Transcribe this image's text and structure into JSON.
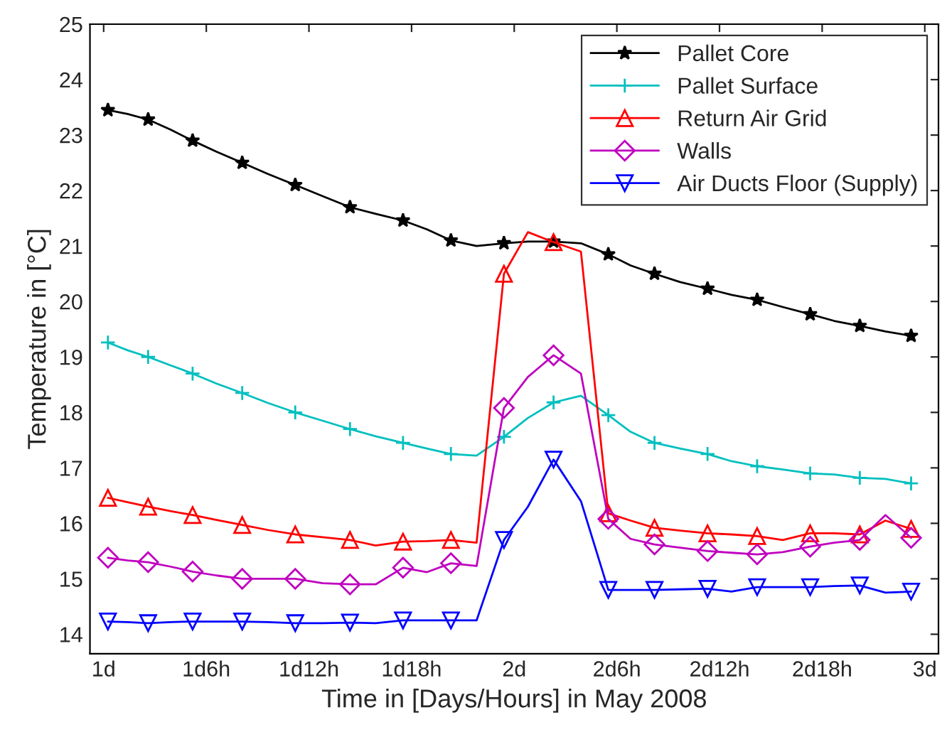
{
  "chart_data": {
    "type": "line",
    "xlabel": "Time in [Days/Hours] in May 2008",
    "ylabel": "Temperature in [°C]",
    "x": [
      "2008-05-01T00:15",
      "2008-05-01T01:24",
      "2008-05-01T02:36",
      "2008-05-01T03:54",
      "2008-05-01T05:12",
      "2008-05-01T06:36",
      "2008-05-01T08:06",
      "2008-05-01T09:36",
      "2008-05-01T11:12",
      "2008-05-01T12:48",
      "2008-05-01T14:24",
      "2008-05-01T15:54",
      "2008-05-01T17:30",
      "2008-05-01T18:54",
      "2008-05-01T20:18",
      "2008-05-01T21:48",
      "2008-05-01T23:24",
      "2008-05-02T00:48",
      "2008-05-02T02:18",
      "2008-05-02T03:54",
      "2008-05-02T05:30",
      "2008-05-02T06:48",
      "2008-05-02T08:12",
      "2008-05-02T09:42",
      "2008-05-02T11:18",
      "2008-05-02T12:42",
      "2008-05-02T14:12",
      "2008-05-02T15:42",
      "2008-05-02T17:18",
      "2008-05-02T18:42",
      "2008-05-02T20:12",
      "2008-05-02T21:42",
      "2008-05-02T23:12"
    ],
    "series": [
      {
        "name": "Pallet Core",
        "color": "#000000",
        "marker": "star",
        "values": [
          23.45,
          23.38,
          23.28,
          23.1,
          22.9,
          22.7,
          22.5,
          22.3,
          22.1,
          21.9,
          21.7,
          21.58,
          21.46,
          21.3,
          21.1,
          21.0,
          21.05,
          21.08,
          21.08,
          21.05,
          20.85,
          20.65,
          20.5,
          20.35,
          20.23,
          20.12,
          20.03,
          19.9,
          19.77,
          19.65,
          19.56,
          19.46,
          19.38
        ]
      },
      {
        "name": "Pallet Surface",
        "color": "#00bfbf",
        "marker": "cross",
        "values": [
          19.26,
          19.12,
          19.0,
          18.85,
          18.7,
          18.52,
          18.35,
          18.17,
          18.0,
          17.85,
          17.7,
          17.57,
          17.45,
          17.35,
          17.25,
          17.22,
          17.56,
          17.9,
          18.18,
          18.3,
          17.95,
          17.65,
          17.45,
          17.35,
          17.25,
          17.12,
          17.03,
          16.97,
          16.9,
          16.88,
          16.82,
          16.8,
          16.72
        ]
      },
      {
        "name": "Return Air Grid",
        "color": "#ff0000",
        "marker": "triangle",
        "values": [
          16.46,
          16.38,
          16.3,
          16.22,
          16.15,
          16.06,
          15.97,
          15.88,
          15.8,
          15.75,
          15.7,
          15.6,
          15.67,
          15.68,
          15.7,
          15.65,
          20.5,
          21.25,
          21.07,
          20.9,
          16.18,
          16.05,
          15.92,
          15.87,
          15.82,
          15.8,
          15.77,
          15.7,
          15.82,
          15.82,
          15.8,
          16.05,
          15.9
        ]
      },
      {
        "name": "Walls",
        "color": "#bf00bf",
        "marker": "diamond",
        "values": [
          15.38,
          15.33,
          15.3,
          15.22,
          15.13,
          15.06,
          15.0,
          15.0,
          15.0,
          14.92,
          14.9,
          14.9,
          15.2,
          15.12,
          15.28,
          15.23,
          18.08,
          18.64,
          19.03,
          18.7,
          16.08,
          15.72,
          15.62,
          15.56,
          15.5,
          15.47,
          15.44,
          15.48,
          15.58,
          15.65,
          15.7,
          16.15,
          15.74
        ]
      },
      {
        "name": "Air Ducts Floor (Supply)",
        "color": "#0000ff",
        "marker": "triangle_down",
        "values": [
          14.23,
          14.22,
          14.2,
          14.22,
          14.23,
          14.23,
          14.23,
          14.22,
          14.2,
          14.2,
          14.21,
          14.2,
          14.25,
          14.25,
          14.25,
          14.25,
          15.7,
          16.3,
          17.15,
          16.4,
          14.8,
          14.8,
          14.8,
          14.81,
          14.82,
          14.77,
          14.85,
          14.85,
          14.85,
          14.87,
          14.88,
          14.75,
          14.77
        ]
      }
    ],
    "xlim": [
      "2008-04-30T23:12",
      "2008-05-03T00:48"
    ],
    "ylim": [
      13.65,
      25
    ],
    "xticks": [
      {
        "value": "2008-05-01T00:00",
        "label": "1d"
      },
      {
        "value": "2008-05-01T06:00",
        "label": "1d6h"
      },
      {
        "value": "2008-05-01T12:00",
        "label": "1d12h"
      },
      {
        "value": "2008-05-01T18:00",
        "label": "1d18h"
      },
      {
        "value": "2008-05-02T00:00",
        "label": "2d"
      },
      {
        "value": "2008-05-02T06:00",
        "label": "2d6h"
      },
      {
        "value": "2008-05-02T12:00",
        "label": "2d12h"
      },
      {
        "value": "2008-05-02T18:00",
        "label": "2d18h"
      },
      {
        "value": "2008-05-03T00:00",
        "label": "3d"
      }
    ],
    "yticks": [
      14,
      15,
      16,
      17,
      18,
      19,
      20,
      21,
      22,
      23,
      24,
      25
    ],
    "grid": false,
    "legend": "top right",
    "line_style": "solid"
  }
}
